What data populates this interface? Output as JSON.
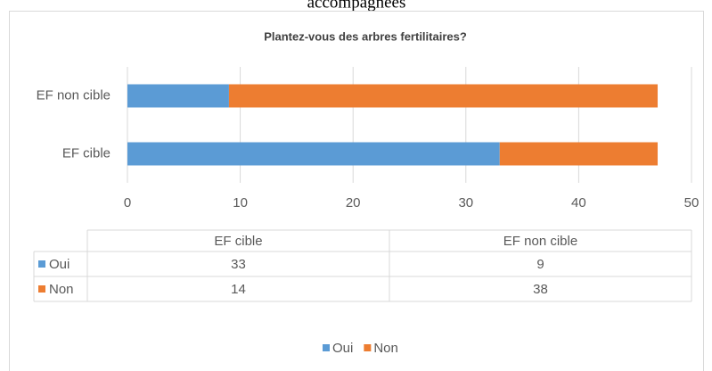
{
  "page_heading": "accompagnées",
  "chart_data": {
    "type": "bar",
    "orientation": "horizontal",
    "stacked": true,
    "title": "Plantez-vous des arbres fertilitaires?",
    "categories": [
      "EF cible",
      "EF non cible"
    ],
    "series": [
      {
        "name": "Oui",
        "color": "#5b9bd5",
        "values": [
          33,
          9
        ]
      },
      {
        "name": "Non",
        "color": "#ed7d31",
        "values": [
          14,
          38
        ]
      }
    ],
    "xlim": [
      0,
      50
    ],
    "xticks": [
      0,
      10,
      20,
      30,
      40,
      50
    ],
    "grid": true,
    "data_table": true,
    "legend": "bottom"
  }
}
